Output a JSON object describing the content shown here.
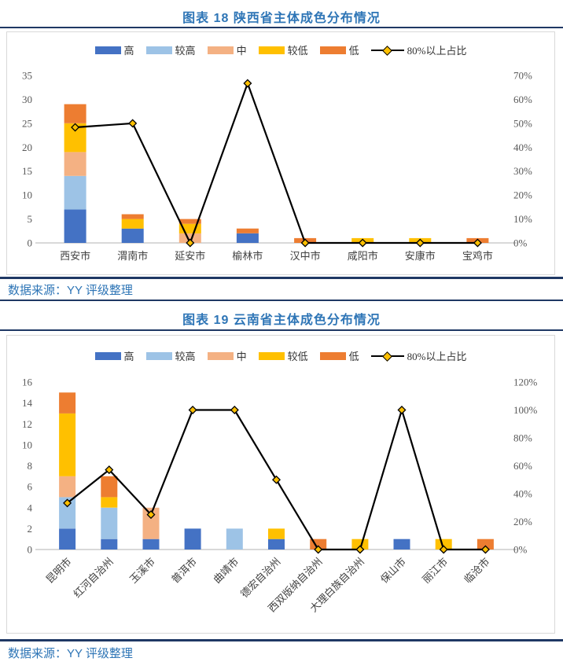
{
  "colors": {
    "title_text": "#2E75B6",
    "source_text": "#2E75B6",
    "divider": "#1F3864",
    "chart_border": "#D9D9D9",
    "axis_text": "#595959",
    "trend_line": "#000000",
    "marker_fill": "#FFC000"
  },
  "figures": [
    {
      "title": "图表 18 陕西省主体成色分布情况",
      "source": "数据来源：YY 评级整理"
    },
    {
      "title": "图表 19 云南省主体成色分布情况",
      "source": "数据来源：YY 评级整理"
    }
  ],
  "chart_data": [
    {
      "type": "bar",
      "subtype": "stacked-column-with-line",
      "title": "图表 18 陕西省主体成色分布情况",
      "categories": [
        "西安市",
        "渭南市",
        "延安市",
        "榆林市",
        "汉中市",
        "咸阳市",
        "安康市",
        "宝鸡市"
      ],
      "series": [
        {
          "name": "高",
          "color": "#4472C4",
          "values": [
            7,
            3,
            0,
            2,
            0,
            0,
            0,
            0
          ]
        },
        {
          "name": "较高",
          "color": "#9DC3E6",
          "values": [
            7,
            0,
            0,
            0,
            0,
            0,
            0,
            0
          ]
        },
        {
          "name": "中",
          "color": "#F4B183",
          "values": [
            5,
            0,
            2,
            0,
            0,
            0,
            0,
            0
          ]
        },
        {
          "name": "较低",
          "color": "#FFC000",
          "values": [
            6,
            2,
            2,
            0,
            0,
            1,
            1,
            0
          ]
        },
        {
          "name": "低",
          "color": "#ED7D31",
          "values": [
            4,
            1,
            1,
            1,
            1,
            0,
            0,
            1
          ]
        }
      ],
      "line_series": {
        "name": "80%以上占比",
        "color": "#000000",
        "marker_fill": "#FFC000",
        "values_pct": [
          48.3,
          50,
          0,
          66.7,
          0,
          0,
          0,
          0
        ]
      },
      "left_axis": {
        "min": 0,
        "max": 35,
        "step": 5
      },
      "right_axis": {
        "min": 0,
        "max": 70,
        "step": 10,
        "suffix": "%"
      },
      "legend_position": "top",
      "grid": false,
      "category_label_rotation": 0
    },
    {
      "type": "bar",
      "subtype": "stacked-column-with-line",
      "title": "图表 19 云南省主体成色分布情况",
      "categories": [
        "昆明市",
        "红河自治州",
        "玉溪市",
        "普洱市",
        "曲靖市",
        "德宏自治州",
        "西双版纳自治州",
        "大理白族自治州",
        "保山市",
        "丽江市",
        "临沧市"
      ],
      "series": [
        {
          "name": "高",
          "color": "#4472C4",
          "values": [
            2,
            1,
            1,
            2,
            0,
            1,
            0,
            0,
            1,
            0,
            0
          ]
        },
        {
          "name": "较高",
          "color": "#9DC3E6",
          "values": [
            3,
            3,
            0,
            0,
            2,
            0,
            0,
            0,
            0,
            0,
            0
          ]
        },
        {
          "name": "中",
          "color": "#F4B183",
          "values": [
            2,
            0,
            3,
            0,
            0,
            0,
            0,
            0,
            0,
            0,
            0
          ]
        },
        {
          "name": "较低",
          "color": "#FFC000",
          "values": [
            6,
            1,
            0,
            0,
            0,
            1,
            0,
            1,
            0,
            1,
            0
          ]
        },
        {
          "name": "低",
          "color": "#ED7D31",
          "values": [
            2,
            2,
            0,
            0,
            0,
            0,
            1,
            0,
            0,
            0,
            1
          ]
        }
      ],
      "line_series": {
        "name": "80%以上占比",
        "color": "#000000",
        "marker_fill": "#FFC000",
        "values_pct": [
          33.3,
          57.1,
          25,
          100,
          100,
          50,
          0,
          0,
          100,
          0,
          0
        ]
      },
      "left_axis": {
        "min": 0,
        "max": 16,
        "step": 2
      },
      "right_axis": {
        "min": 0,
        "max": 120,
        "step": 20,
        "suffix": "%"
      },
      "legend_position": "top",
      "grid": false,
      "category_label_rotation": -45
    }
  ]
}
